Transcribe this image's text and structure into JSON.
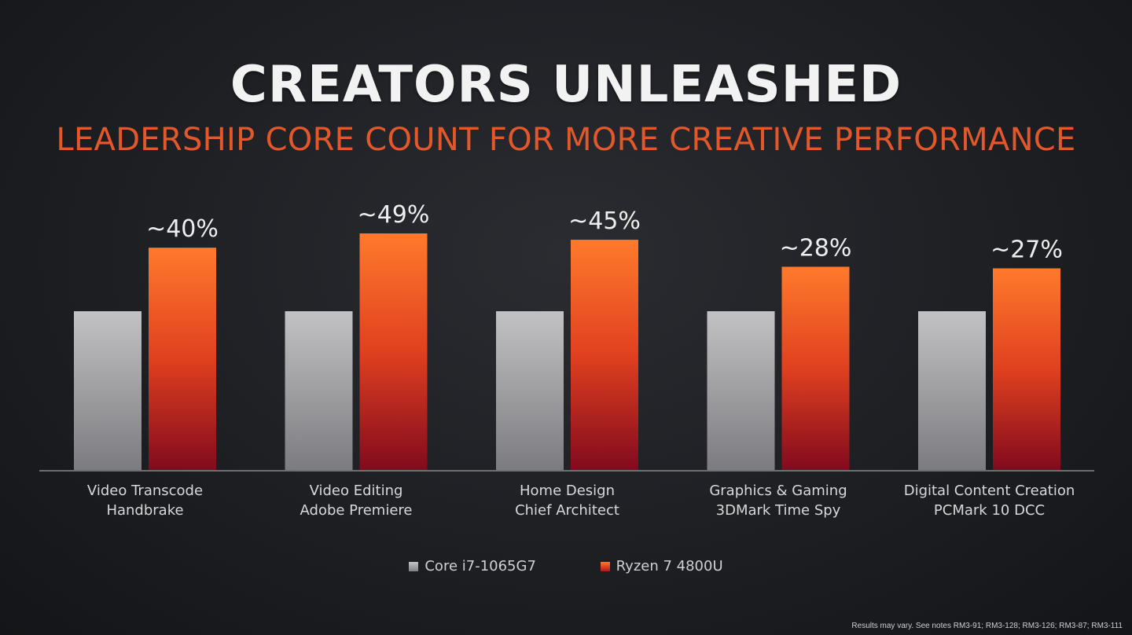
{
  "slide": {
    "title": "CREATORS UNLEASHED",
    "subtitle": "LEADERSHIP CORE COUNT FOR MORE CREATIVE PERFORMANCE",
    "footnote": "Results may vary. See notes RM3-91; RM3-128; RM3-126; RM3-87; RM3-111"
  },
  "colors": {
    "baseline_top": "#c2c2c4",
    "baseline_bottom": "#7c7c80",
    "ryzen_top": "#ff7a2c",
    "ryzen_mid": "#e0401f",
    "ryzen_bottom": "#820a1e",
    "subtitle": "#e2582a"
  },
  "chart_data": {
    "type": "bar",
    "categories": [
      [
        "Video Transcode",
        "Handbrake"
      ],
      [
        "Video Editing",
        "Adobe Premiere"
      ],
      [
        "Home Design",
        "Chief Architect"
      ],
      [
        "Graphics & Gaming",
        "3DMark Time Spy"
      ],
      [
        "Digital Content Creation",
        "PCMark 10 DCC"
      ]
    ],
    "series": [
      {
        "name": "Core i7-1065G7",
        "values": [
          100,
          100,
          100,
          100,
          100
        ],
        "labels": [
          "",
          "",
          "",
          "",
          ""
        ]
      },
      {
        "name": "Ryzen 7 4800U",
        "values": [
          140,
          149,
          145,
          128,
          127
        ],
        "labels": [
          "~40%",
          "~49%",
          "~45%",
          "~28%",
          "~27%"
        ]
      }
    ],
    "ylim": [
      0,
      150
    ],
    "grid": false,
    "legend": "bottom-center",
    "title": "CREATORS UNLEASHED",
    "subtitle": "LEADERSHIP CORE COUNT FOR MORE CREATIVE PERFORMANCE",
    "xlabel": "",
    "ylabel": ""
  }
}
